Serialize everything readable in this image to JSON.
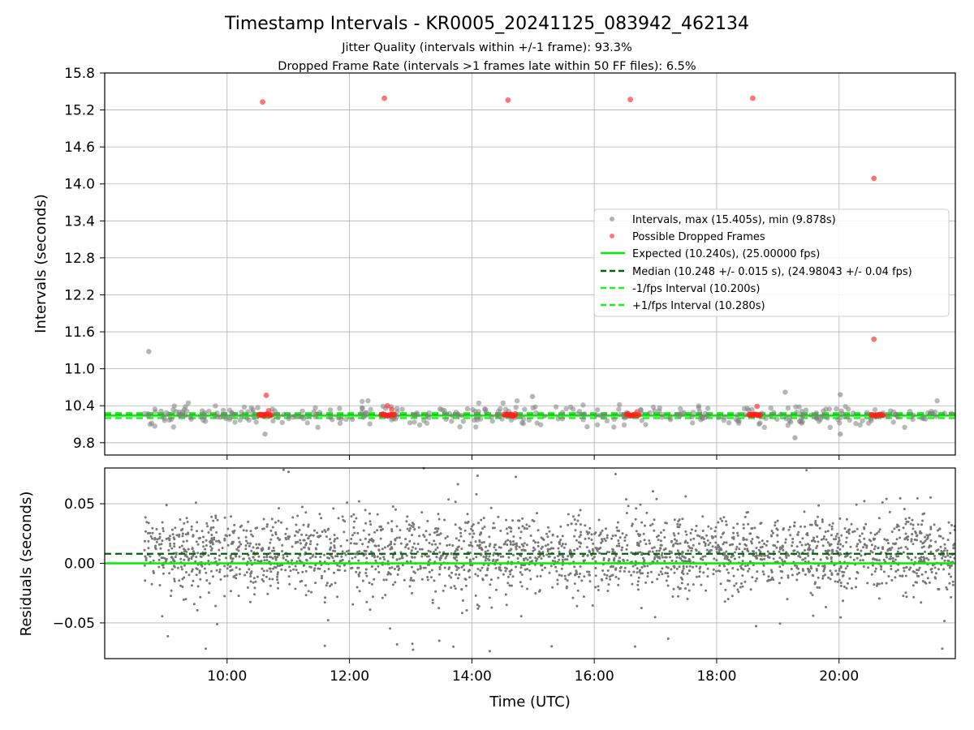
{
  "chart_data": [
    {
      "type": "scatter",
      "title": "Timestamp Intervals - KR0005_20241125_083942_462134",
      "subtitle_lines": [
        "Jitter Quality (intervals within +/-1 frame): 93.3%",
        "Dropped Frame Rate (intervals >1 frames late within 50 FF files): 6.5%"
      ],
      "xlabel": "",
      "ylabel": "Intervals (seconds)",
      "xlim_hours": [
        8.0,
        21.9
      ],
      "ylim": [
        9.6,
        15.8
      ],
      "yticks": [
        9.8,
        10.4,
        11.0,
        11.6,
        12.2,
        12.8,
        13.4,
        14.0,
        14.6,
        15.2,
        15.8
      ],
      "ytick_labels": [
        "9.8",
        "10.4",
        "11.0",
        "11.6",
        "12.2",
        "12.8",
        "13.4",
        "14.0",
        "14.6",
        "15.2",
        "15.8"
      ],
      "xticks_hours": [
        10,
        12,
        14,
        16,
        18,
        20
      ],
      "grid": true,
      "legend_position": "center-right",
      "legend": [
        {
          "label": "Intervals, max (15.405s), min (9.878s)",
          "kind": "marker",
          "color": "#808080"
        },
        {
          "label": "Possible Dropped Frames",
          "kind": "marker",
          "color": "#ff3b3b"
        },
        {
          "label": "Expected (10.240s), (25.00000 fps)",
          "kind": "solid",
          "color": "#00ee00"
        },
        {
          "label": "Median (10.248 +/- 0.015 s), (24.98043 +/- 0.04 fps)",
          "kind": "dashed",
          "color": "#006400"
        },
        {
          "label": "-1/fps Interval (10.200s)",
          "kind": "dashed",
          "color": "#22ee22"
        },
        {
          "label": "+1/fps Interval (10.280s)",
          "kind": "dashed",
          "color": "#22ee22"
        }
      ],
      "reference_lines": {
        "expected": 10.24,
        "median": 10.248,
        "minus_one_frame": 10.2,
        "plus_one_frame": 10.28
      },
      "series": [
        {
          "name": "Intervals, max (15.405s), min (9.878s)",
          "color": "#808080",
          "data_range": [
            8.65,
            21.9
          ],
          "typical_spread": [
            10.05,
            10.5
          ],
          "outliers": [
            {
              "x": 8.72,
              "y": 11.28
            },
            {
              "x": 10.62,
              "y": 9.94
            },
            {
              "x": 14.99,
              "y": 10.55
            },
            {
              "x": 19.12,
              "y": 10.62
            },
            {
              "x": 19.28,
              "y": 9.88
            },
            {
              "x": 20.02,
              "y": 10.58
            },
            {
              "x": 20.02,
              "y": 9.94
            }
          ]
        },
        {
          "name": "Possible Dropped Frames",
          "color": "#ff3b3b",
          "points": [
            {
              "x": 10.58,
              "y": 15.33
            },
            {
              "x": 12.57,
              "y": 15.39
            },
            {
              "x": 14.59,
              "y": 15.36
            },
            {
              "x": 16.59,
              "y": 15.37
            },
            {
              "x": 18.59,
              "y": 15.39
            },
            {
              "x": 20.57,
              "y": 14.09
            },
            {
              "x": 20.57,
              "y": 11.48
            },
            {
              "x": 10.64,
              "y": 10.57
            },
            {
              "x": 10.68,
              "y": 10.32
            },
            {
              "x": 12.62,
              "y": 10.4
            },
            {
              "x": 12.69,
              "y": 10.34
            },
            {
              "x": 16.7,
              "y": 10.3
            },
            {
              "x": 18.66,
              "y": 10.39
            }
          ],
          "clusters": [
            {
              "x_start": 10.52,
              "x_end": 10.72,
              "y": 10.25
            },
            {
              "x_start": 12.52,
              "x_end": 12.73,
              "y": 10.25
            },
            {
              "x_start": 14.53,
              "x_end": 14.71,
              "y": 10.25
            },
            {
              "x_start": 16.53,
              "x_end": 16.72,
              "y": 10.25
            },
            {
              "x_start": 18.53,
              "x_end": 18.71,
              "y": 10.25
            },
            {
              "x_start": 20.53,
              "x_end": 20.72,
              "y": 10.25
            }
          ]
        }
      ]
    },
    {
      "type": "scatter",
      "title": "",
      "xlabel": "Time (UTC)",
      "ylabel": "Residuals (seconds)",
      "xlim_hours": [
        8.0,
        21.9
      ],
      "ylim": [
        -0.08,
        0.08
      ],
      "yticks": [
        -0.05,
        0.0,
        0.05
      ],
      "ytick_labels": [
        "−0.05",
        "0.00",
        "0.05"
      ],
      "xticks_hours": [
        10,
        12,
        14,
        16,
        18,
        20
      ],
      "xtick_labels": [
        "10:00",
        "12:00",
        "14:00",
        "16:00",
        "18:00",
        "20:00"
      ],
      "grid": true,
      "reference_lines": {
        "expected": 0.0,
        "median": 0.008
      },
      "series": [
        {
          "name": "Residuals",
          "color": "#777777",
          "data_range": [
            8.65,
            21.9
          ],
          "typical_band": [
            -0.03,
            0.04
          ],
          "center": 0.008
        }
      ]
    }
  ]
}
